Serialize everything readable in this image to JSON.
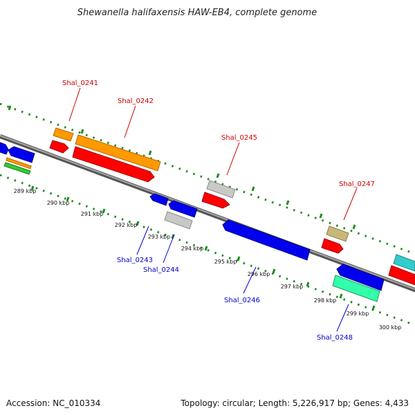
{
  "title": "Shewanella halifaxensis HAW-EB4, complete genome",
  "footer": {
    "accession": "Accession: NC_010334",
    "summary": "Topology: circular; Length: 5,226,917 bp; Genes: 4,433"
  },
  "ticks": [
    "289 kbp",
    "290 kbp",
    "291 kbp",
    "292 kbp",
    "293 kbp",
    "294 kbp",
    "295 kbp",
    "296 kbp",
    "297 kbp",
    "298 kbp",
    "299 kbp",
    "300 kbp"
  ],
  "genes": {
    "g0241": "Shal_0241",
    "g0242": "Shal_0242",
    "g0243": "Shal_0243",
    "g0244": "Shal_0244",
    "g0245": "Shal_0245",
    "g0246": "Shal_0246",
    "g0247": "Shal_0247",
    "g0248": "Shal_0248"
  },
  "colors": {
    "forward_label": "#cc0000",
    "reverse_label": "#0000cc",
    "backbone": "#808080",
    "dots": "#228b22",
    "cog_red": "#ff0000",
    "cog_blue": "#0000ff",
    "cog_orange": "#ff9900",
    "cog_grey": "#c0c0c0",
    "cog_khaki": "#c8b878",
    "cog_teal": "#33cccc",
    "cog_mint": "#33ffaa",
    "cog_green": "#33cc33"
  }
}
